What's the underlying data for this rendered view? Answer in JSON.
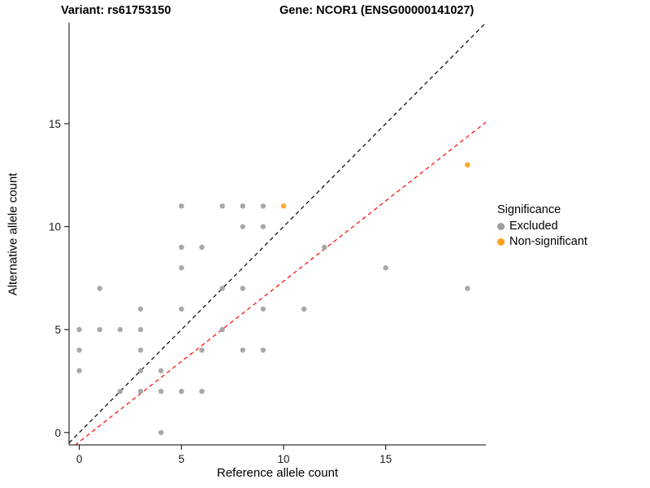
{
  "chart_data": {
    "type": "scatter",
    "title_left": "Variant: rs61753150",
    "title_right": "Gene: NCOR1 (ENSG00000141027)",
    "xlabel": "Reference allele count",
    "ylabel": "Alternative allele count",
    "xlim": [
      -0.5,
      19.9
    ],
    "ylim": [
      -0.6,
      19.9
    ],
    "xticks": [
      0,
      5,
      10,
      15
    ],
    "yticks": [
      0,
      5,
      10,
      15
    ],
    "grid": false,
    "series": [
      {
        "name": "Excluded",
        "color": "#9e9e9e",
        "points": [
          [
            0,
            3
          ],
          [
            0,
            4
          ],
          [
            0,
            5
          ],
          [
            1,
            5
          ],
          [
            1,
            7
          ],
          [
            2,
            2
          ],
          [
            2,
            5
          ],
          [
            3,
            2
          ],
          [
            3,
            3
          ],
          [
            3,
            4
          ],
          [
            3,
            5
          ],
          [
            3,
            6
          ],
          [
            4,
            0
          ],
          [
            4,
            2
          ],
          [
            4,
            3
          ],
          [
            5,
            2
          ],
          [
            5,
            6
          ],
          [
            5,
            8
          ],
          [
            5,
            9
          ],
          [
            5,
            11
          ],
          [
            6,
            2
          ],
          [
            6,
            4
          ],
          [
            6,
            9
          ],
          [
            7,
            5
          ],
          [
            7,
            7
          ],
          [
            7,
            11
          ],
          [
            8,
            4
          ],
          [
            8,
            7
          ],
          [
            8,
            10
          ],
          [
            8,
            11
          ],
          [
            9,
            4
          ],
          [
            9,
            6
          ],
          [
            9,
            10
          ],
          [
            9,
            11
          ],
          [
            11,
            6
          ],
          [
            12,
            9
          ],
          [
            15,
            8
          ],
          [
            19,
            7
          ]
        ]
      },
      {
        "name": "Non-significant",
        "color": "#f9a11b",
        "points": [
          [
            10,
            11
          ],
          [
            19,
            13
          ]
        ]
      }
    ],
    "lines": [
      {
        "name": "identity",
        "color": "#000000",
        "dashed": true,
        "slope": 1.0,
        "intercept": 0.0
      },
      {
        "name": "regression",
        "color": "#ff0000",
        "dashed": true,
        "slope": 0.78,
        "intercept": -0.45
      }
    ],
    "legend": {
      "title": "Significance",
      "position": "right",
      "items": [
        {
          "label": "Excluded",
          "color": "#9e9e9e"
        },
        {
          "label": "Non-significant",
          "color": "#f9a11b"
        }
      ]
    }
  }
}
